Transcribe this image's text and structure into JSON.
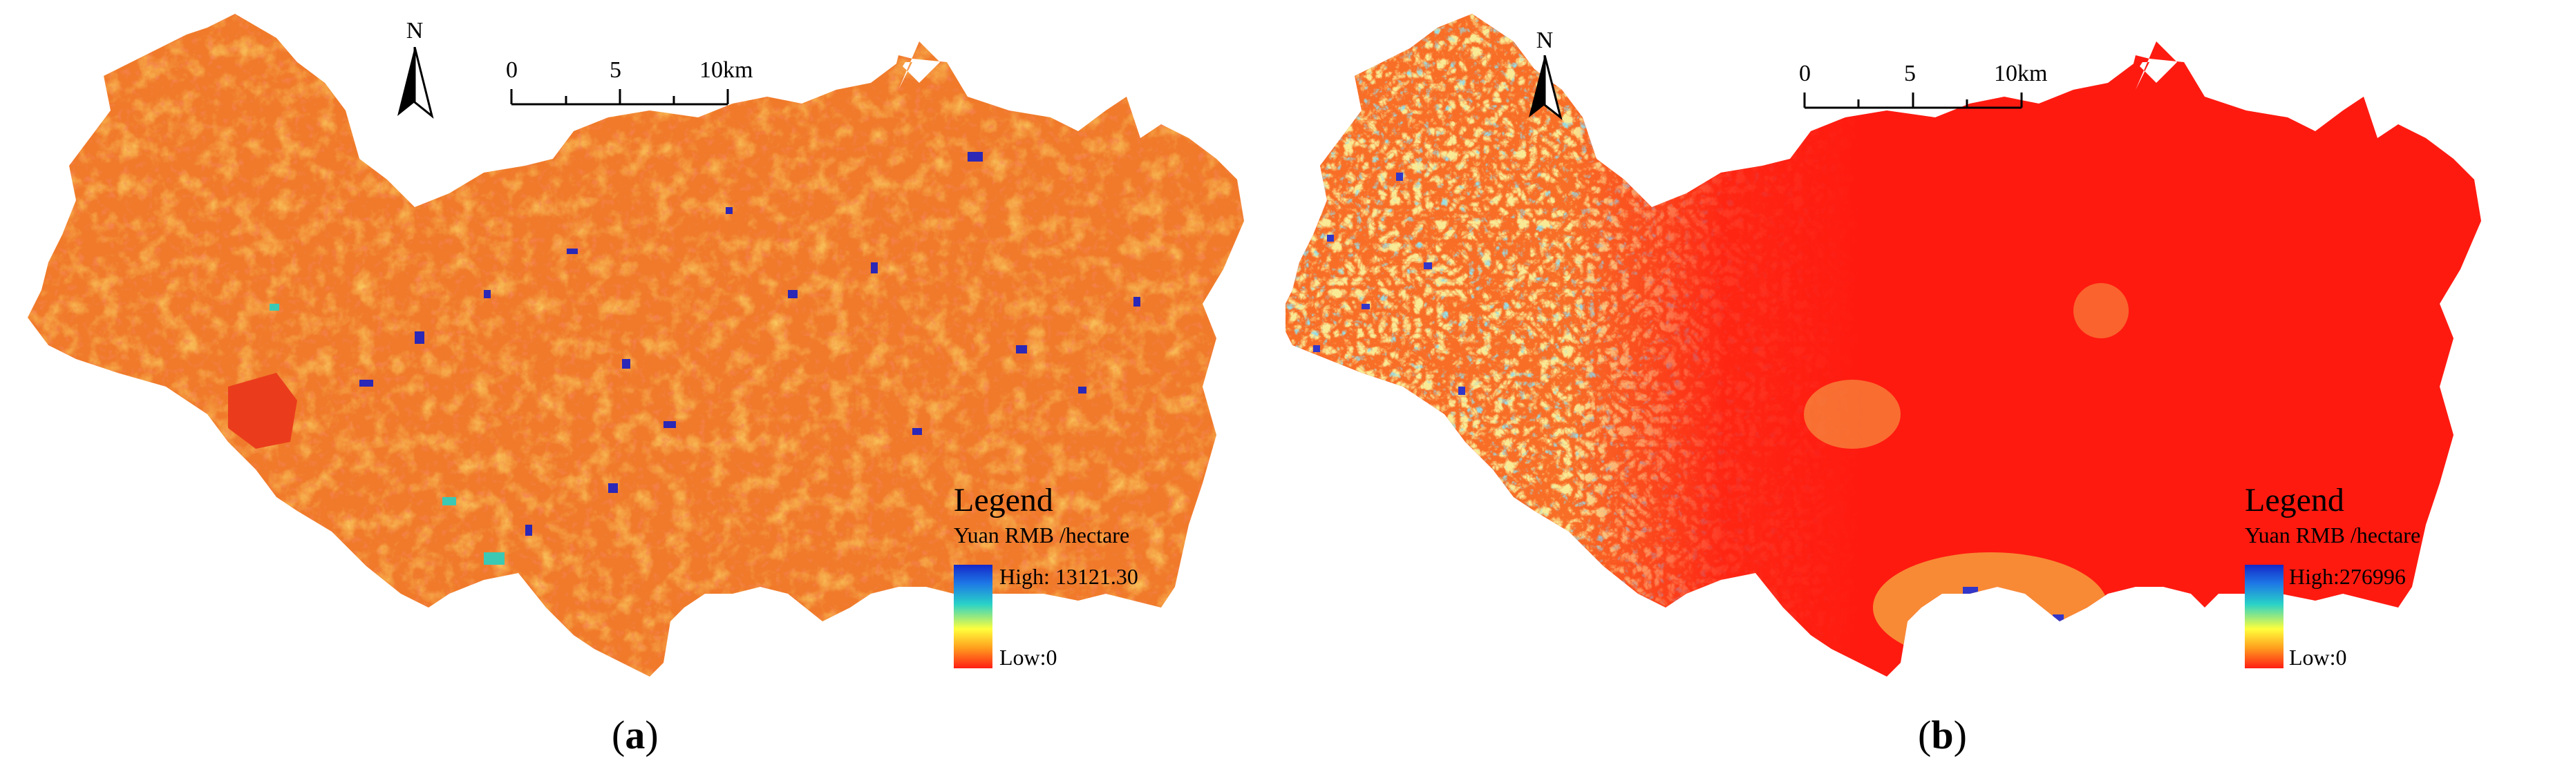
{
  "panels": [
    {
      "id": "a",
      "north": "N",
      "scale": {
        "ticks": [
          "0",
          "5",
          "10km"
        ]
      },
      "legend": {
        "title": "Legend",
        "unit": "Yuan RMB /hectare",
        "high": "High: 13121.30",
        "low": "Low:0"
      },
      "caption": {
        "open": "(",
        "letter": "a",
        "close": ")"
      },
      "colors": {
        "dominant": "#f07a2a",
        "hot": "#ee3a1a",
        "warm": "#f9b321",
        "cool": "#3bc9b4",
        "cold": "#2b27b7"
      }
    },
    {
      "id": "b",
      "north": "N",
      "scale": {
        "ticks": [
          "0",
          "5",
          "10km"
        ]
      },
      "legend": {
        "title": "Legend",
        "unit": "Yuan RMB /hectare",
        "high": "High:276996",
        "low": "Low:0"
      },
      "caption": {
        "open": "(",
        "letter": "b",
        "close": ")"
      },
      "colors": {
        "dominant": "#ff1a10",
        "hot": "#ff1a10",
        "warm": "#f2c43a",
        "cool": "#5cc4c0",
        "cold": "#3236c8"
      }
    }
  ]
}
